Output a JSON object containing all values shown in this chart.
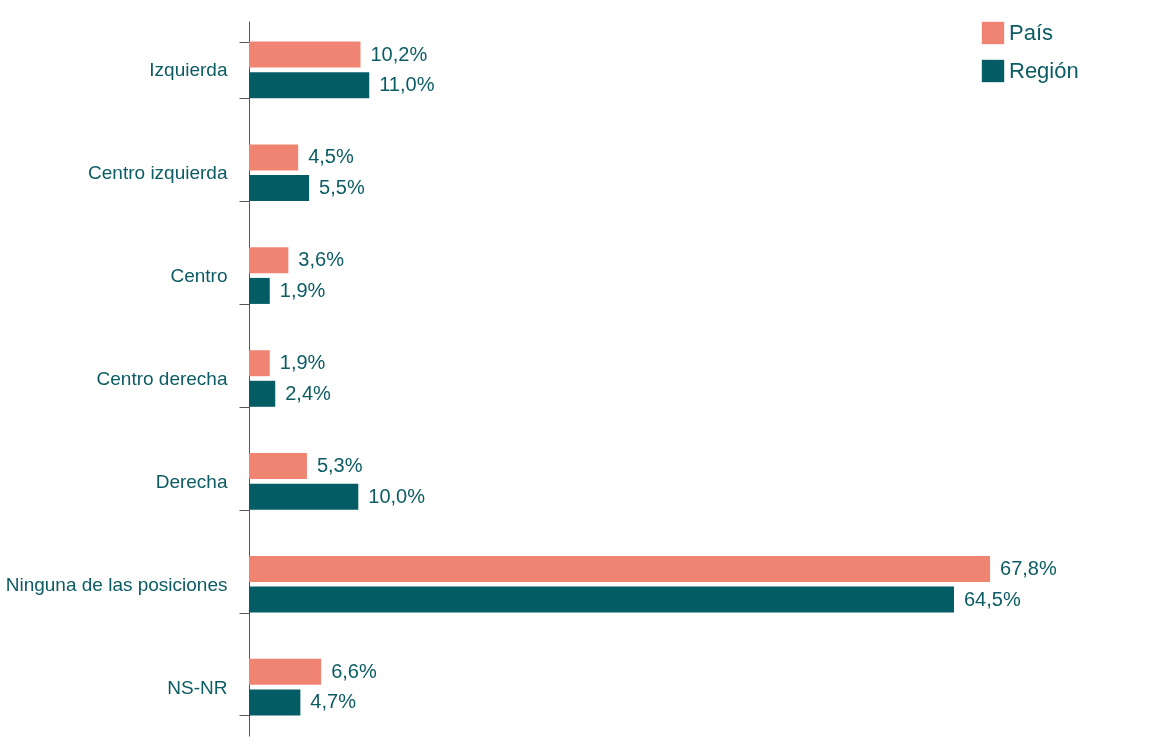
{
  "chart_data": {
    "type": "bar",
    "orientation": "horizontal",
    "legend": "top right",
    "categories": [
      "Izquierda",
      "Centro izquierda",
      "Centro",
      "Centro derecha",
      "Derecha",
      "Ninguna de las posiciones",
      "NS-NR"
    ],
    "series": [
      {
        "name": "País",
        "color": "#f08473",
        "values": [
          10.2,
          4.5,
          3.6,
          1.9,
          5.3,
          67.8,
          6.6
        ],
        "value_labels": [
          "10,2%",
          "4,5%",
          "3,6%",
          "1,9%",
          "5,3%",
          "67,8%",
          "6,6%"
        ]
      },
      {
        "name": "Región",
        "color": "#045d65",
        "values": [
          11.0,
          5.5,
          1.9,
          2.4,
          10.0,
          64.5,
          4.7
        ],
        "value_labels": [
          "11,0%",
          "5,5%",
          "1,9%",
          "2,4%",
          "10,0%",
          "64,5%",
          "4,7%"
        ]
      }
    ]
  }
}
